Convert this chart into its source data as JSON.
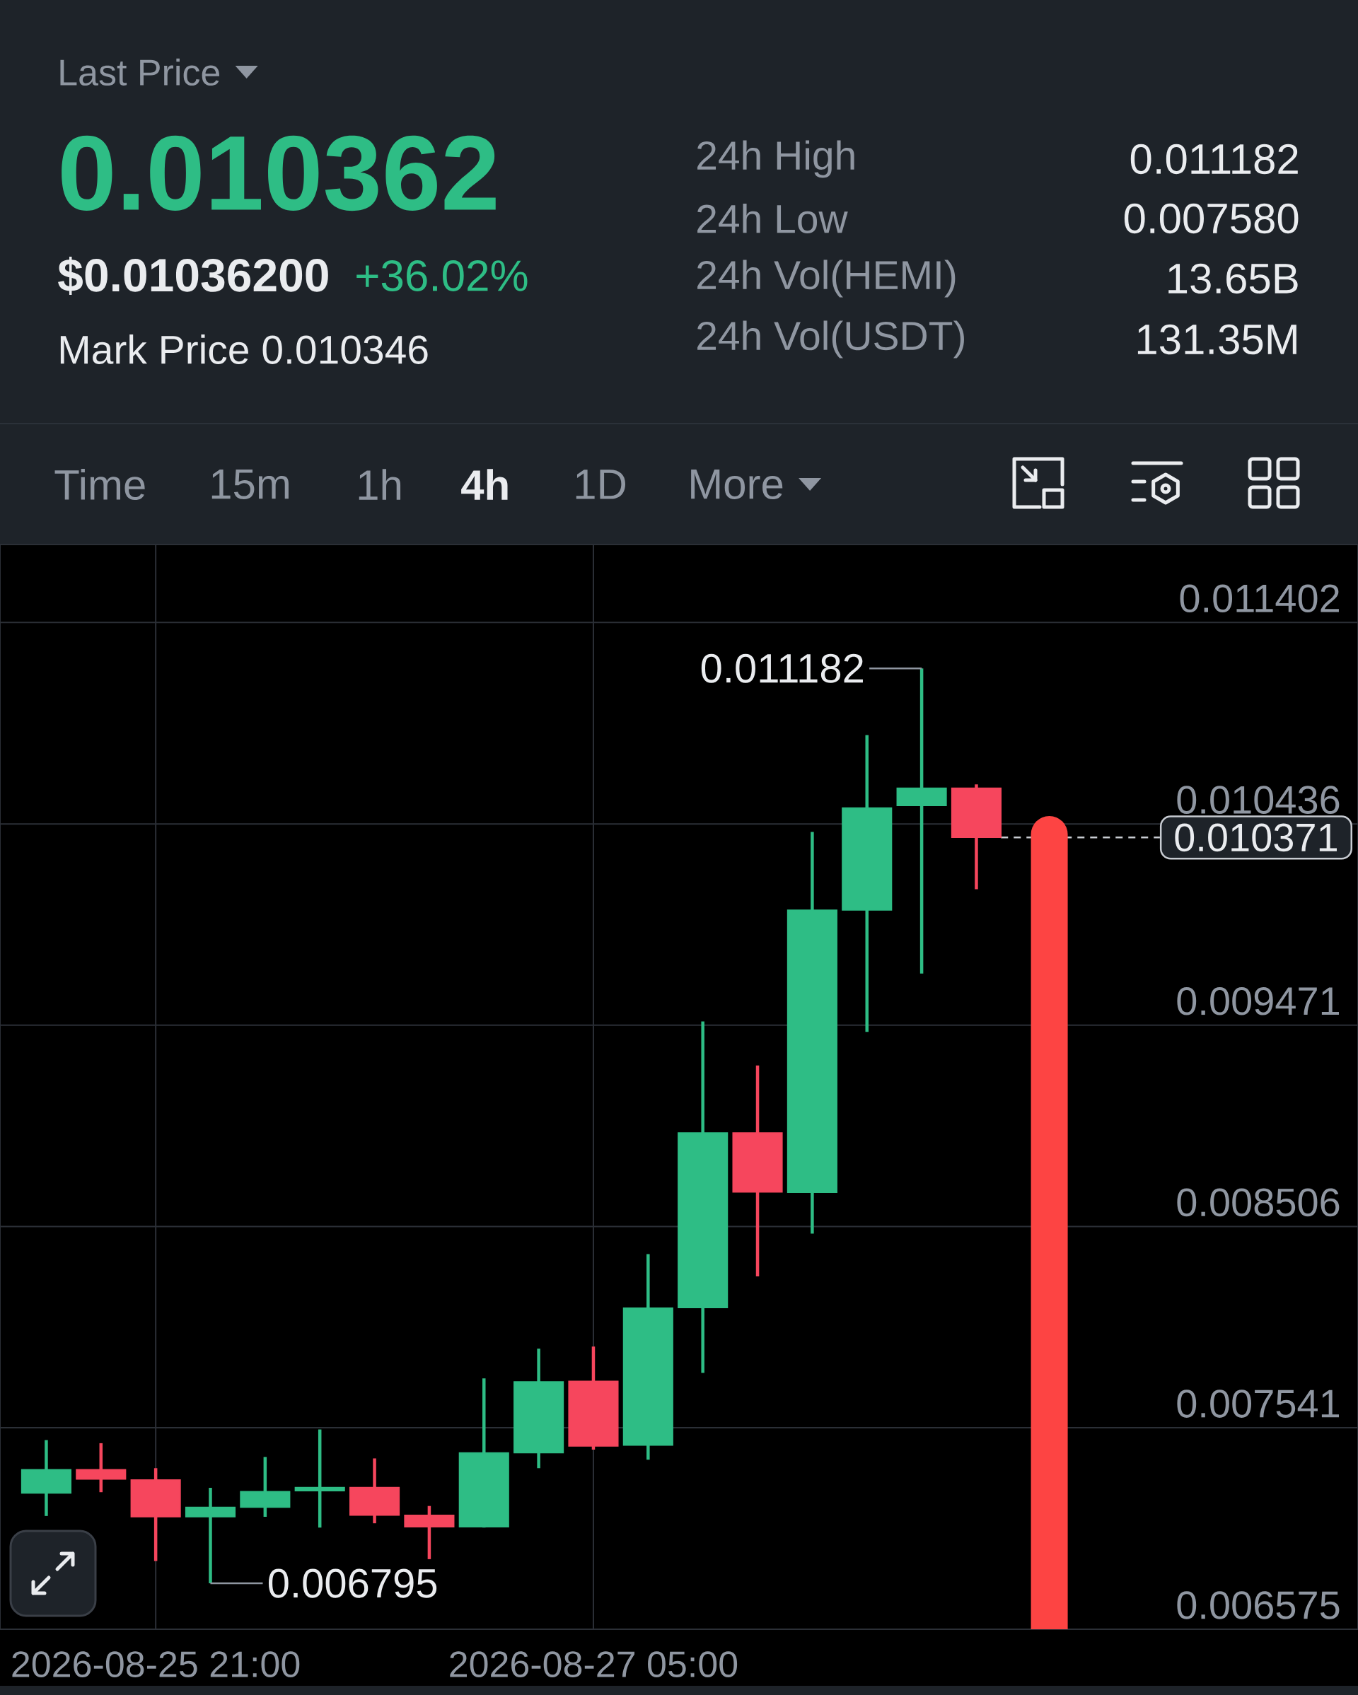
{
  "chart_data": {
    "type": "candlestick",
    "x": [
      "2026-08-25T13:00",
      "2026-08-25T17:00",
      "2026-08-25T21:00",
      "2026-08-26T01:00",
      "2026-08-26T05:00",
      "2026-08-26T09:00",
      "2026-08-26T13:00",
      "2026-08-26T17:00",
      "2026-08-26T21:00",
      "2026-08-27T01:00",
      "2026-08-27T05:00",
      "2026-08-27T09:00",
      "2026-08-27T13:00",
      "2026-08-27T17:00",
      "2026-08-27T21:00",
      "2026-08-28T01:00",
      "2026-08-28T05:00",
      "2026-08-28T09:00"
    ],
    "ohlc": [
      [
        0.007228,
        0.007482,
        0.007118,
        0.00734
      ],
      [
        0.00734,
        0.007467,
        0.007232,
        0.007295
      ],
      [
        0.007291,
        0.007347,
        0.006902,
        0.007114
      ],
      [
        0.007114,
        0.007253,
        0.006795,
        0.00716
      ],
      [
        0.00716,
        0.007401,
        0.007114,
        0.007235
      ],
      [
        0.007239,
        0.007533,
        0.007062,
        0.007255
      ],
      [
        0.007255,
        0.007394,
        0.007083,
        0.007122
      ],
      [
        0.007122,
        0.007166,
        0.006911,
        0.007066
      ],
      [
        0.007066,
        0.007778,
        0.007062,
        0.007421
      ],
      [
        0.007421,
        0.00792,
        0.007347,
        0.007762
      ],
      [
        0.007764,
        0.00793,
        0.007436,
        0.007453
      ],
      [
        0.007457,
        0.008374,
        0.007388,
        0.008115
      ],
      [
        0.008117,
        0.009489,
        0.007804,
        0.008955
      ],
      [
        0.008955,
        0.009278,
        0.008267,
        0.008671
      ],
      [
        0.008669,
        0.010398,
        0.008472,
        0.010023
      ],
      [
        0.010023,
        0.010862,
        0.009439,
        0.010513
      ],
      [
        0.010524,
        0.011182,
        0.009719,
        0.010608
      ],
      [
        0.010608,
        0.010626,
        0.010123,
        0.010371
      ]
    ],
    "colors": [
      "#2ebd85",
      "#f6465d",
      "#f6465d",
      "#2ebd85",
      "#2ebd85",
      "#2ebd85",
      "#f6465d",
      "#f6465d",
      "#2ebd85",
      "#2ebd85",
      "#f6465d",
      "#2ebd85",
      "#2ebd85",
      "#f6465d",
      "#2ebd85",
      "#2ebd85",
      "#2ebd85",
      "#f6465d"
    ],
    "xlim": [
      "2026-08-25T09:37",
      "2026-08-29T12:54"
    ],
    "xticks": [
      {
        "value": "2026-08-25T21:00",
        "label": "2026-08-25 21:00"
      },
      {
        "value": "2026-08-27T05:00",
        "label": "2026-08-27 05:00"
      }
    ],
    "ylim": [
      0.006575,
      0.011776
    ],
    "yticks": [
      0.006575,
      0.007541,
      0.008506,
      0.009471,
      0.010436,
      0.011402
    ],
    "grid": true,
    "series": [
      {
        "type": "line",
        "x": [
          "2026-08-28T14:20",
          "2026-08-28T14:20"
        ],
        "values": [
          0.010386,
          0.006575
        ],
        "color": "#fd4443"
      }
    ],
    "ref_lines": [
      {
        "axis": "y",
        "value": 0.010371,
        "label": "0.010371",
        "line_style": "dashed",
        "color": "#c8ccd2"
      }
    ],
    "annotations": [
      {
        "text": "0.011182",
        "x": "2026-08-28T05:00",
        "y": 0.011182
      },
      {
        "text": "0.006795",
        "x": "2026-08-26T01:00",
        "y": 0.006795
      },
      "Last Price",
      "0.010362",
      "$0.01036200",
      "+36.02%",
      "Mark Price 0.010346",
      "24h High",
      "0.011182",
      "24h Low",
      "0.007580",
      "24h Vol(HEMI)",
      "13.65B",
      "24h Vol(USDT)",
      "131.35M",
      "Time",
      "15m",
      "1h",
      "4h",
      "1D",
      "More"
    ]
  }
}
